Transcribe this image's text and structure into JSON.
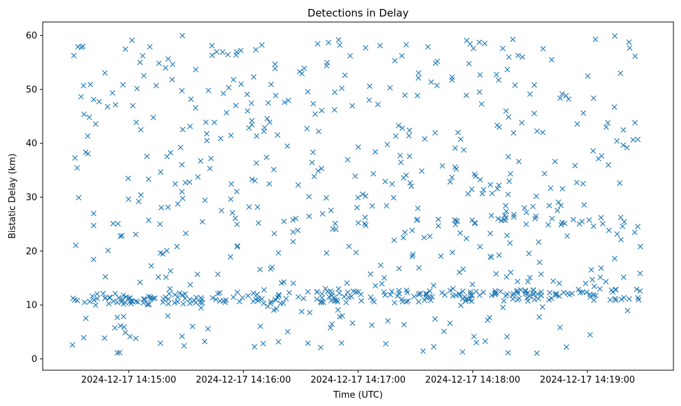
{
  "chart_data": {
    "type": "scatter",
    "title": "Detections in Delay",
    "xlabel": "Time (UTC)",
    "ylabel": "Bistatic Delay (km)",
    "marker": "x",
    "color": "#1f77b4",
    "grid": false,
    "legend": "none",
    "x_range": [
      "2024-12-17 14:14:15",
      "2024-12-17 14:19:45"
    ],
    "ylim": [
      -2.1,
      62.5
    ],
    "x_ticks": [
      "2024-12-17 14:15:00",
      "2024-12-17 14:16:00",
      "2024-12-17 14:17:00",
      "2024-12-17 14:18:00",
      "2024-12-17 14:19:00"
    ],
    "y_ticks": [
      0,
      10,
      20,
      30,
      40,
      50,
      60
    ],
    "x_start": "2024-12-17 14:14:30",
    "x_end": "2024-12-17 14:19:28",
    "n_points": 800,
    "bands": [
      {
        "name": "band-low",
        "from": "2024-12-17 14:14:30",
        "to": "2024-12-17 14:19:28",
        "y_start": 11.0,
        "y_end": 12.0
      },
      {
        "name": "band-mid",
        "from": "2024-12-17 14:17:30",
        "to": "2024-12-17 14:19:28",
        "y_start": 25.0,
        "y_end": 25.5
      }
    ]
  }
}
